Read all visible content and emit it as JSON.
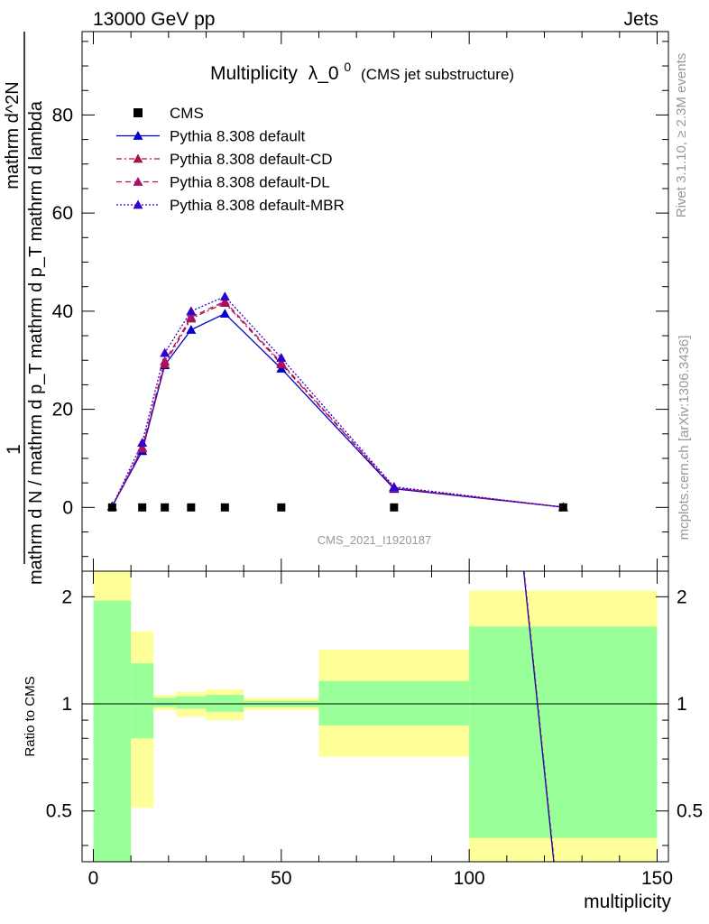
{
  "header": {
    "left": "13000 GeV pp",
    "right": "Jets"
  },
  "title": {
    "main": "Multiplicity",
    "lambda": "λ_0",
    "sup": "0",
    "sub": "(CMS jet substructure)"
  },
  "ylabel": {
    "one": "1",
    "denominator": "mathrm d N / mathrm d p_T mathrm d p_T mathrm d lambda",
    "numerator": "mathrm d^2N"
  },
  "side": {
    "rivet": "Rivet 3.1.10, ≥ 2.3M events",
    "mcplots": "mcplots.cern.ch [arXiv:1306.3436]"
  },
  "watermark": "CMS_2021_I1920187",
  "ratio_ylabel": "Ratio to CMS",
  "xlabel": "multiplicity",
  "colors": {
    "data": "#000000",
    "default": "#0000cc",
    "cd": "#aa1144",
    "dl": "#aa1166",
    "mbr": "#3300cc",
    "band_inner": "#99ff99",
    "band_outer": "#ffff99"
  },
  "chart_data": [
    {
      "type": "line",
      "xlim": [
        -3,
        153
      ],
      "ylim": [
        -13,
        97
      ],
      "yticks": [
        0,
        20,
        40,
        60,
        80
      ],
      "legend_position": "top-left",
      "series": [
        {
          "name": "CMS",
          "style": "markers",
          "x": [
            5,
            13,
            19,
            26,
            35,
            50,
            80,
            125
          ],
          "y": [
            0,
            0,
            0,
            0,
            0,
            0,
            0,
            0
          ]
        },
        {
          "name": "Pythia 8.308 default",
          "style": "solid",
          "x": [
            5,
            13,
            19,
            26,
            35,
            50,
            80,
            125
          ],
          "y": [
            0.2,
            11.5,
            29,
            36.2,
            39.5,
            28.3,
            3.8,
            0.05
          ]
        },
        {
          "name": "Pythia 8.308 default-CD",
          "style": "dashdot",
          "x": [
            5,
            13,
            19,
            26,
            35,
            50,
            80,
            125
          ],
          "y": [
            0.2,
            12,
            29.2,
            38.5,
            41.7,
            29.2,
            4.0,
            0.05
          ]
        },
        {
          "name": "Pythia 8.308 default-DL",
          "style": "dashed",
          "x": [
            5,
            13,
            19,
            26,
            35,
            50,
            80,
            125
          ],
          "y": [
            0.2,
            12.2,
            29.8,
            38.8,
            42.0,
            29.5,
            4.0,
            0.05
          ]
        },
        {
          "name": "Pythia 8.308 default-MBR",
          "style": "dotted",
          "x": [
            5,
            13,
            19,
            26,
            35,
            50,
            80,
            125
          ],
          "y": [
            0.2,
            13.2,
            31.5,
            40,
            43,
            30.5,
            4.2,
            0.05
          ]
        }
      ]
    },
    {
      "type": "area",
      "log_y": true,
      "ylim": [
        0.36,
        2.36
      ],
      "yticks": [
        0.5,
        1,
        2
      ],
      "xlim": [
        -3,
        153
      ],
      "xticks": [
        0,
        50,
        100,
        150
      ],
      "bands": [
        {
          "x0": 0,
          "x1": 10,
          "inner": [
            0.36,
            1.95
          ],
          "outer": [
            0.36,
            2.36
          ]
        },
        {
          "x0": 10,
          "x1": 16,
          "inner": [
            0.8,
            1.3
          ],
          "outer": [
            0.51,
            1.6
          ]
        },
        {
          "x0": 16,
          "x1": 22,
          "inner": [
            0.98,
            1.04
          ],
          "outer": [
            0.96,
            1.06
          ]
        },
        {
          "x0": 22,
          "x1": 30,
          "inner": [
            0.97,
            1.05
          ],
          "outer": [
            0.92,
            1.08
          ]
        },
        {
          "x0": 30,
          "x1": 40,
          "inner": [
            0.95,
            1.06
          ],
          "outer": [
            0.9,
            1.1
          ]
        },
        {
          "x0": 40,
          "x1": 60,
          "inner": [
            0.98,
            1.02
          ],
          "outer": [
            0.96,
            1.04
          ]
        },
        {
          "x0": 60,
          "x1": 100,
          "inner": [
            0.87,
            1.16
          ],
          "outer": [
            0.71,
            1.42
          ]
        },
        {
          "x0": 100,
          "x1": 150,
          "inner": [
            0.42,
            1.65
          ],
          "outer": [
            0.36,
            2.08
          ]
        }
      ],
      "ratio_line": {
        "x": [
          114.5,
          122.5
        ],
        "y": [
          2.36,
          0.36
        ]
      }
    }
  ]
}
